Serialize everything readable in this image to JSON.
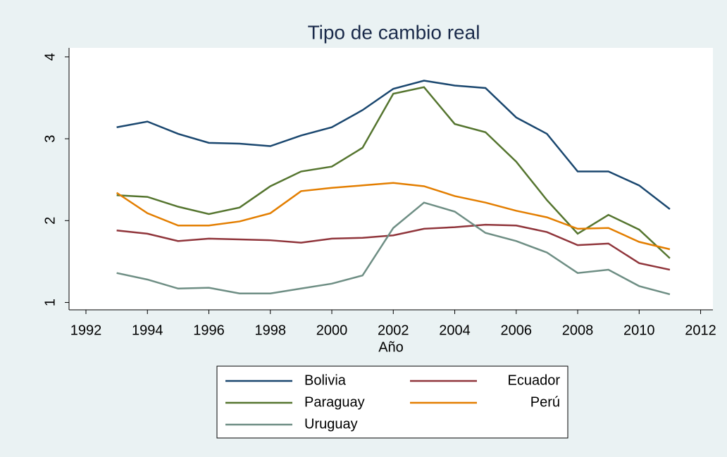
{
  "chart_data": {
    "type": "line",
    "title": "Tipo de cambio real",
    "x_label": "Año",
    "x": [
      1993,
      1994,
      1995,
      1996,
      1997,
      1998,
      1999,
      2000,
      2001,
      2002,
      2003,
      2004,
      2005,
      2006,
      2007,
      2008,
      2009,
      2010,
      2011
    ],
    "series": [
      {
        "name": "Bolivia",
        "color": "#1a476f",
        "values": [
          3.14,
          3.21,
          3.06,
          2.95,
          2.94,
          2.91,
          3.04,
          3.14,
          3.35,
          3.61,
          3.71,
          3.65,
          3.62,
          3.26,
          3.06,
          2.6,
          2.6,
          2.43,
          2.14
        ]
      },
      {
        "name": "Ecuador",
        "color": "#90353b",
        "values": [
          1.88,
          1.84,
          1.75,
          1.78,
          1.77,
          1.76,
          1.73,
          1.78,
          1.79,
          1.82,
          1.9,
          1.92,
          1.95,
          1.94,
          1.86,
          1.7,
          1.72,
          1.48,
          1.4
        ]
      },
      {
        "name": "Paraguay",
        "color": "#55752f",
        "values": [
          2.31,
          2.29,
          2.17,
          2.08,
          2.16,
          2.42,
          2.6,
          2.66,
          2.89,
          3.55,
          3.63,
          3.18,
          3.08,
          2.72,
          2.25,
          1.84,
          2.07,
          1.89,
          1.54
        ]
      },
      {
        "name": "Perú",
        "color": "#e37e00",
        "values": [
          2.34,
          2.09,
          1.94,
          1.94,
          1.99,
          2.09,
          2.36,
          2.4,
          2.43,
          2.46,
          2.42,
          2.3,
          2.22,
          2.12,
          2.04,
          1.9,
          1.91,
          1.74,
          1.65
        ]
      },
      {
        "name": "Uruguay",
        "color": "#6e8e84",
        "values": [
          1.36,
          1.28,
          1.17,
          1.18,
          1.11,
          1.11,
          1.17,
          1.23,
          1.33,
          1.91,
          2.22,
          2.11,
          1.85,
          1.75,
          1.61,
          1.36,
          1.4,
          1.2,
          1.1
        ]
      }
    ],
    "xlim": [
      1991.45,
      2012.4
    ],
    "xticks": [
      1992,
      1994,
      1996,
      1998,
      2000,
      2002,
      2004,
      2006,
      2008,
      2010,
      2012
    ],
    "ylim": [
      0.91,
      4.11
    ],
    "yticks": [
      1,
      2,
      3,
      4
    ],
    "grid": false
  }
}
